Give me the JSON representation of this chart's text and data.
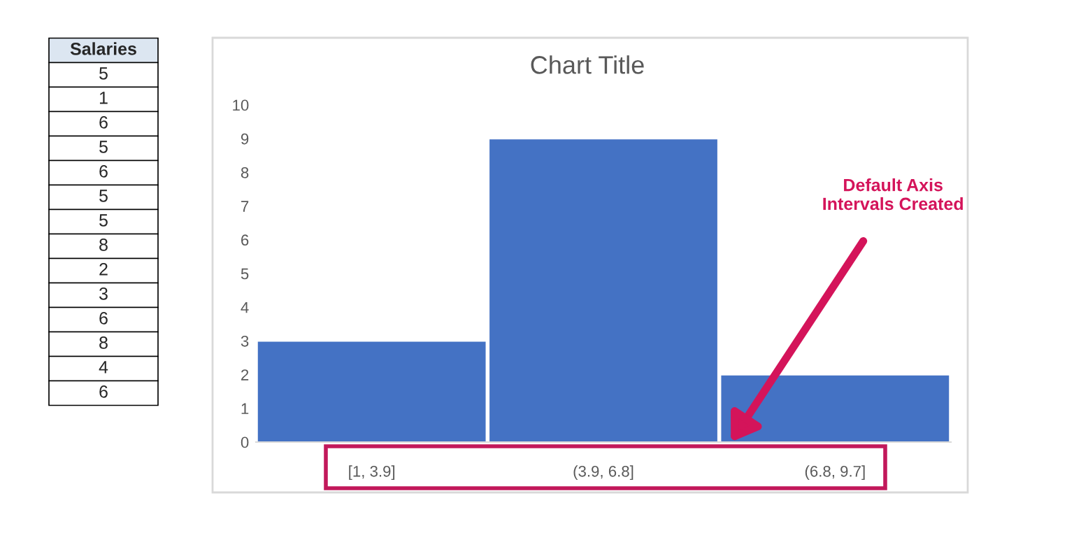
{
  "chart_data": {
    "type": "bar",
    "title": "Chart Title",
    "categories": [
      "[1, 3.9]",
      "(3.9, 6.8]",
      "(6.8, 9.7]"
    ],
    "values": [
      3,
      9,
      2
    ],
    "color": "#4472c4",
    "ylim": [
      0,
      10
    ],
    "yticks": [
      0,
      1,
      2,
      3,
      4,
      5,
      6,
      7,
      8,
      9,
      10
    ],
    "grid": false,
    "annotations": [
      "Default Axis\nIntervals Created",
      "Salaries\n5\n1\n6\n5\n6\n5\n5\n8\n2\n3\n6\n8\n4\n6"
    ]
  }
}
